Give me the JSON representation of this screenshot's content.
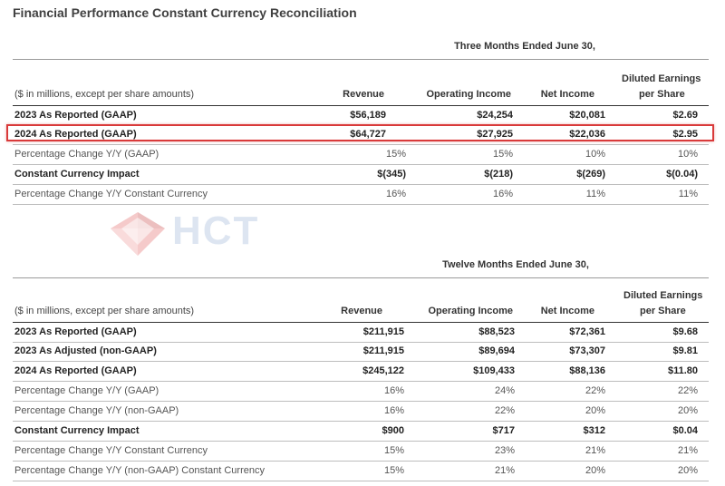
{
  "title": "Financial Performance Constant Currency Reconciliation",
  "watermark": {
    "text": "HCT",
    "color": "#9fb7d8"
  },
  "highlight_color": "#d93a3a",
  "tables": [
    {
      "period": "Three Months Ended June 30,",
      "unit_note": "($ in millions, except per share amounts)",
      "columns": [
        "Revenue",
        "Operating Income",
        "Net Income",
        "Diluted Earnings",
        "per Share"
      ],
      "rows": [
        {
          "label": "2023 As Reported (GAAP)",
          "values": [
            "$56,189",
            "$24,254",
            "$20,081",
            "$2.69"
          ]
        },
        {
          "label": "2024 As Reported (GAAP)",
          "values": [
            "$64,727",
            "$27,925",
            "$22,036",
            "$2.95"
          ]
        },
        {
          "label": "Percentage Change Y/Y (GAAP)",
          "values": [
            "15%",
            "15%",
            "10%",
            "10%"
          ]
        },
        {
          "label": "Constant Currency Impact",
          "values": [
            "$(345)",
            "$(218)",
            "$(269)",
            "$(0.04)"
          ]
        },
        {
          "label": "Percentage Change Y/Y Constant Currency",
          "values": [
            "16%",
            "16%",
            "11%",
            "11%"
          ]
        }
      ]
    },
    {
      "period": "Twelve Months Ended June 30,",
      "unit_note": "($ in millions, except per share amounts)",
      "columns": [
        "Revenue",
        "Operating Income",
        "Net Income",
        "Diluted Earnings",
        "per Share"
      ],
      "rows": [
        {
          "label": "2023 As Reported (GAAP)",
          "values": [
            "$211,915",
            "$88,523",
            "$72,361",
            "$9.68"
          ]
        },
        {
          "label": "2023 As Adjusted (non-GAAP)",
          "values": [
            "$211,915",
            "$89,694",
            "$73,307",
            "$9.81"
          ]
        },
        {
          "label": "2024 As Reported (GAAP)",
          "values": [
            "$245,122",
            "$109,433",
            "$88,136",
            "$11.80"
          ]
        },
        {
          "label": "Percentage Change Y/Y (GAAP)",
          "values": [
            "16%",
            "24%",
            "22%",
            "22%"
          ]
        },
        {
          "label": "Percentage Change Y/Y (non-GAAP)",
          "values": [
            "16%",
            "22%",
            "20%",
            "20%"
          ]
        },
        {
          "label": "Constant Currency Impact",
          "values": [
            "$900",
            "$717",
            "$312",
            "$0.04"
          ]
        },
        {
          "label": "Percentage Change Y/Y Constant Currency",
          "values": [
            "15%",
            "23%",
            "21%",
            "21%"
          ]
        },
        {
          "label": "Percentage Change Y/Y (non-GAAP) Constant Currency",
          "values": [
            "15%",
            "21%",
            "20%",
            "20%"
          ]
        }
      ]
    }
  ]
}
